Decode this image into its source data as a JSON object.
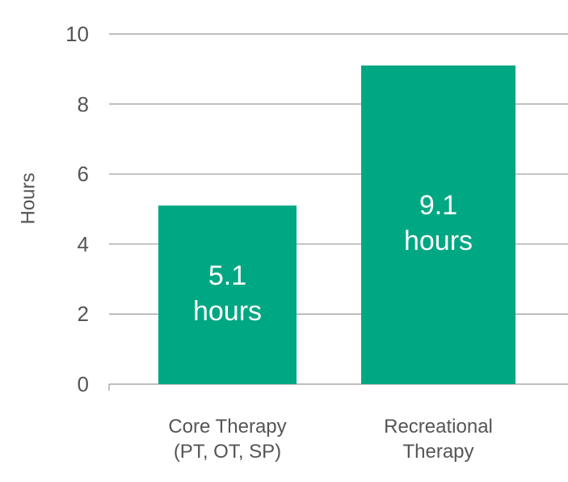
{
  "chart_data": {
    "type": "bar",
    "y_label": "Hours",
    "categories": [
      "Core Therapy (PT, OT, SP)",
      "Recreational Therapy"
    ],
    "values": [
      5.1,
      9.1
    ],
    "value_labels": [
      "5.1 hours",
      "9.1 hours"
    ],
    "color": "#00a783",
    "ylim": [
      0,
      10
    ],
    "yticks": [
      0,
      2,
      4,
      6,
      8,
      10
    ],
    "grid": true
  }
}
